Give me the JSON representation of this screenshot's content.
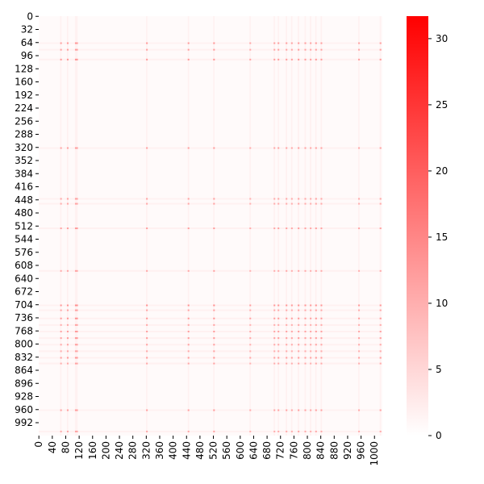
{
  "chart_data": {
    "type": "heatmap",
    "title": "",
    "xlabel": "",
    "ylabel": "",
    "matrix_size": 1024,
    "x_ticks": [
      0,
      40,
      80,
      120,
      160,
      200,
      240,
      280,
      320,
      360,
      400,
      440,
      480,
      520,
      560,
      600,
      640,
      680,
      720,
      760,
      800,
      840,
      880,
      920,
      960,
      1000
    ],
    "y_ticks": [
      0,
      32,
      64,
      96,
      128,
      160,
      192,
      224,
      256,
      288,
      320,
      352,
      384,
      416,
      448,
      480,
      512,
      544,
      576,
      608,
      640,
      672,
      704,
      736,
      768,
      800,
      832,
      864,
      896,
      928,
      960,
      992
    ],
    "colorbar": {
      "min": 0,
      "max": 31.7,
      "ticks": [
        0,
        5,
        10,
        15,
        20,
        25,
        30
      ],
      "color_low": "#ffffff",
      "color_high": "#ff0000"
    },
    "background_level": 0.6,
    "hot_rows": [
      {
        "index": 64,
        "value": 12
      },
      {
        "index": 80,
        "value": 11
      },
      {
        "index": 104,
        "value": 13
      },
      {
        "index": 320,
        "value": 11
      },
      {
        "index": 444,
        "value": 10
      },
      {
        "index": 456,
        "value": 9
      },
      {
        "index": 516,
        "value": 11
      },
      {
        "index": 620,
        "value": 9
      },
      {
        "index": 704,
        "value": 14
      },
      {
        "index": 716,
        "value": 10
      },
      {
        "index": 736,
        "value": 13
      },
      {
        "index": 752,
        "value": 9
      },
      {
        "index": 768,
        "value": 11
      },
      {
        "index": 784,
        "value": 12
      },
      {
        "index": 800,
        "value": 10
      },
      {
        "index": 816,
        "value": 9
      },
      {
        "index": 832,
        "value": 12
      },
      {
        "index": 846,
        "value": 9
      },
      {
        "index": 960,
        "value": 11
      },
      {
        "index": 1012,
        "value": 9
      }
    ],
    "hot_columns": [
      {
        "index": 64,
        "value": 12
      },
      {
        "index": 84,
        "value": 13
      },
      {
        "index": 108,
        "value": 14
      },
      {
        "index": 112,
        "value": 13
      },
      {
        "index": 320,
        "value": 13
      },
      {
        "index": 444,
        "value": 13
      },
      {
        "index": 520,
        "value": 14
      },
      {
        "index": 628,
        "value": 10
      },
      {
        "index": 700,
        "value": 11
      },
      {
        "index": 712,
        "value": 12
      },
      {
        "index": 736,
        "value": 12
      },
      {
        "index": 752,
        "value": 11
      },
      {
        "index": 772,
        "value": 13
      },
      {
        "index": 792,
        "value": 12
      },
      {
        "index": 808,
        "value": 11
      },
      {
        "index": 824,
        "value": 13
      },
      {
        "index": 840,
        "value": 12
      },
      {
        "index": 952,
        "value": 11
      },
      {
        "index": 1016,
        "value": 12
      }
    ]
  }
}
